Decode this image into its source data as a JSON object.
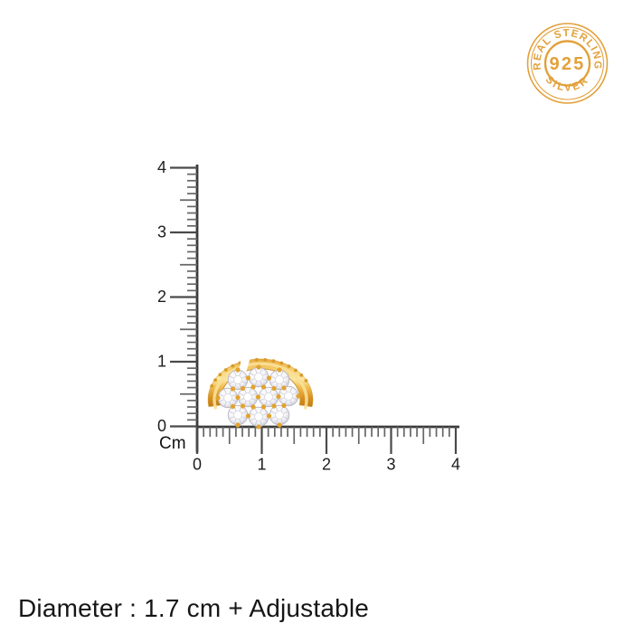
{
  "page": {
    "background_color": "#ffffff"
  },
  "badge": {
    "top_text": "REAL STERLING",
    "center_text": "925",
    "bottom_text": "SILVER",
    "color": "#E2A13B"
  },
  "ruler": {
    "unit_label": "Cm",
    "tick_labels": [
      "0",
      "1",
      "2",
      "3",
      "4"
    ],
    "min_cm": 0,
    "max_cm": 4,
    "line_color": "#3b3b3b",
    "major_tick_color": "#4a4a4a",
    "minor_tick_color": "#666666",
    "label_color": "#1d1d1d"
  },
  "ring": {
    "style": "gold flower cluster ring, adjustable open band",
    "metal_color": "#F2BE4E",
    "stone_color": "#FFFFFF",
    "prong_color": "#E2A32E"
  },
  "caption": {
    "text": "Diameter : 1.7 cm + Adjustable"
  }
}
